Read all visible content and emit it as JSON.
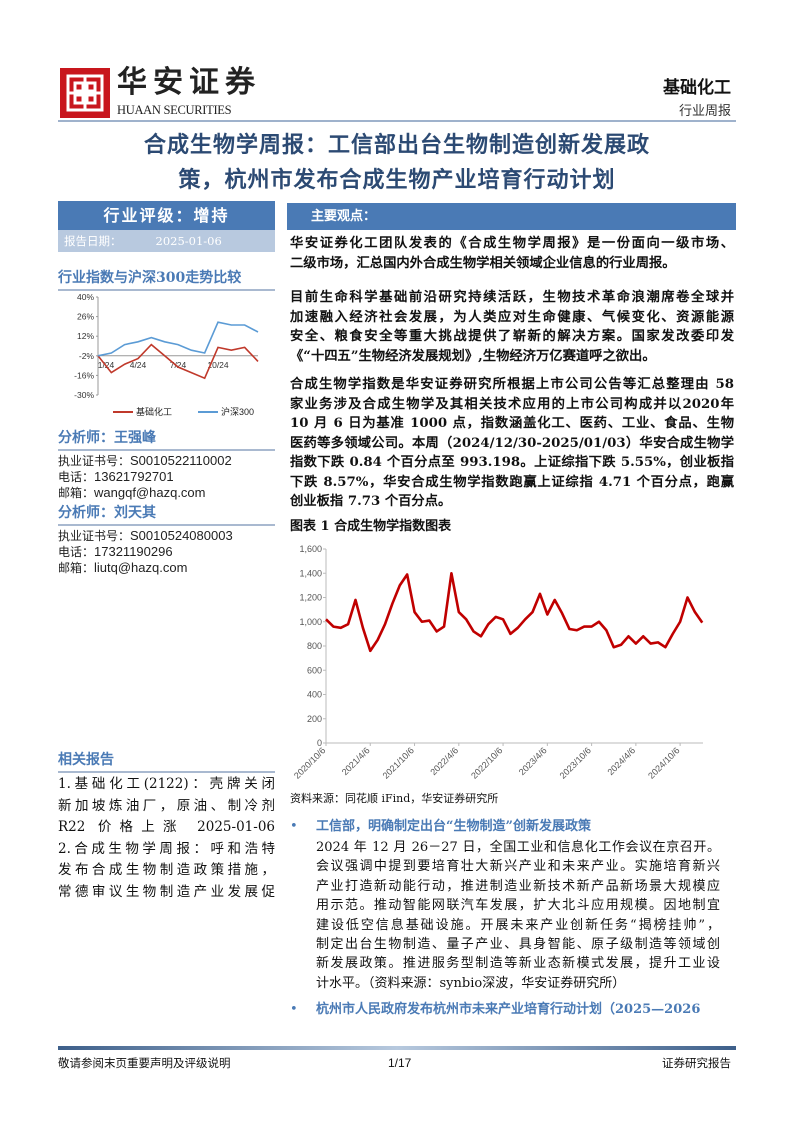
{
  "header": {
    "logo_cn": "华安证券",
    "logo_en": "HUAAN SECURITIES",
    "sector": "基础化工",
    "report_type": "行业周报"
  },
  "title": {
    "line1": "合成生物学周报：工信部出台生物制造创新发展政",
    "line2": "策，杭州市发布合成生物产业培育行动计划"
  },
  "rating": {
    "label": "行业评级：增持",
    "date_label": "报告日期：",
    "date": "2025-01-06"
  },
  "main_points_label": "主要观点：",
  "comparison": {
    "title": "行业指数与沪深300走势比较",
    "chart_data": {
      "type": "line",
      "x": [
        "1/24",
        "2/24",
        "3/24",
        "4/24",
        "5/24",
        "6/24",
        "7/24",
        "8/24",
        "9/24",
        "10/24",
        "11/24",
        "12/24",
        "1/25"
      ],
      "xticks": [
        "1/24",
        "4/24",
        "7/24",
        "10/24"
      ],
      "yticks": [
        "40%",
        "26%",
        "12%",
        "-2%",
        "-16%",
        "-30%"
      ],
      "ylim": [
        -30,
        40
      ],
      "series": [
        {
          "name": "基础化工",
          "color": "#c0392b",
          "values": [
            -2,
            -14,
            -8,
            -4,
            6,
            -2,
            -10,
            -14,
            -18,
            4,
            2,
            4,
            -6
          ]
        },
        {
          "name": "沪深300",
          "color": "#5b9bd5",
          "values": [
            -2,
            0,
            6,
            8,
            11,
            8,
            6,
            2,
            0,
            22,
            20,
            20,
            15
          ]
        }
      ]
    }
  },
  "analysts": [
    {
      "heading": "分析师：王强峰",
      "cert_label": "执业证书号：",
      "cert": "S0010522110002",
      "phone_label": "电话：",
      "phone": "13621792701",
      "email_label": "邮箱：",
      "email": "wangqf@hazq.com"
    },
    {
      "heading": "分析师：刘天其",
      "cert_label": "执业证书号：",
      "cert": "S0010524080003",
      "phone_label": "电话：",
      "phone": "17321190296",
      "email_label": "邮箱：",
      "email": "liutq@hazq.com"
    }
  ],
  "related": {
    "heading": "相关报告",
    "lines": [
      "1.基础化工(2122)：壳牌关闭",
      "新加坡炼油厂，原油、制冷剂",
      "R22 价格上涨 2025-01-06",
      "2.合成生物学周报：呼和浩特",
      "发布合成生物制造政策措施，",
      "常德审议生物制造产业发展促"
    ]
  },
  "paragraphs": [
    [
      "华安证券化工团队发表的《合成生物学周报》是一份面向一级市场、",
      "二级市场，汇总国内外合成生物学相关领域企业信息的行业周报。"
    ],
    [
      "目前生命科学基础前沿研究持续活跃，生物技术革命浪潮席卷全球并",
      "加速融入经济社会发展，为人类应对生命健康、气候变化、资源能源",
      "安全、粮食安全等重大挑战提供了崭新的解决方案。国家发改委印发",
      "《“十四五”生物经济发展规划》,生物经济万亿赛道呼之欲出。"
    ],
    [
      "合成生物学指数是华安证券研究所根据上市公司公告等汇总整理由 58",
      "家业务涉及合成生物学及其相关技术应用的上市公司构成并以2020年",
      "10 月 6 日为基准 1000 点，指数涵盖化工、医药、工业、食品、生物",
      "医药等多领域公司。本周（2024/12/30-2025/01/03）华安合成生物学",
      "指数下跌 0.84 个百分点至 993.198。上证综指下跌 5.55%，创业板指",
      "下跌 8.57%，华安合成生物学指数跑赢上证综指 4.71 个百分点，跑赢",
      "创业板指 7.73 个百分点。"
    ]
  ],
  "figure1": {
    "title": "图表 1 合成生物学指数图表",
    "source": "资料来源：同花顺 iFind，华安证券研究所",
    "chart_data": {
      "type": "line",
      "color": "#c00000",
      "ylim": [
        0,
        1600
      ],
      "yticks": [
        "0",
        "200",
        "400",
        "600",
        "800",
        "1,000",
        "1,200",
        "1,400",
        "1,600"
      ],
      "xticks": [
        "2020/10/6",
        "2021/4/6",
        "2021/10/6",
        "2022/4/6",
        "2022/10/6",
        "2023/4/6",
        "2023/10/6",
        "2024/4/6",
        "2024/10/6"
      ],
      "x": [
        "2020-10",
        "2020-11",
        "2020-12",
        "2021-01",
        "2021-02",
        "2021-03",
        "2021-04",
        "2021-05",
        "2021-06",
        "2021-07",
        "2021-08",
        "2021-09",
        "2021-10",
        "2021-11",
        "2021-12",
        "2022-01",
        "2022-02",
        "2022-03",
        "2022-04",
        "2022-05",
        "2022-06",
        "2022-07",
        "2022-08",
        "2022-09",
        "2022-10",
        "2022-11",
        "2022-12",
        "2023-01",
        "2023-02",
        "2023-03",
        "2023-04",
        "2023-05",
        "2023-06",
        "2023-07",
        "2023-08",
        "2023-09",
        "2023-10",
        "2023-11",
        "2023-12",
        "2024-01",
        "2024-02",
        "2024-03",
        "2024-04",
        "2024-05",
        "2024-06",
        "2024-07",
        "2024-08",
        "2024-09",
        "2024-10",
        "2024-11",
        "2024-12",
        "2025-01"
      ],
      "values": [
        1020,
        960,
        950,
        980,
        1180,
        950,
        760,
        850,
        980,
        1150,
        1300,
        1390,
        1080,
        1000,
        1010,
        920,
        960,
        1400,
        1080,
        1020,
        920,
        880,
        980,
        1040,
        1020,
        900,
        950,
        1020,
        1080,
        1230,
        1060,
        1180,
        1070,
        940,
        930,
        960,
        960,
        1000,
        930,
        790,
        810,
        880,
        820,
        880,
        820,
        830,
        790,
        900,
        1000,
        1200,
        1080,
        993
      ]
    }
  },
  "news": [
    {
      "heading": "工信部，明确制定出台“生物制造”创新发展政策",
      "lines": [
        "2024 年 12 月 26－27 日，全国工业和信息化工作会议在京召开。",
        "会议强调中提到要培育壮大新兴产业和未来产业。实施培育新兴",
        "产业打造新动能行动，推进制造业新技术新产品新场景大规模应",
        "用示范。推动智能网联汽车发展，扩大北斗应用规模。因地制宜",
        "建设低空信息基础设施。开展未来产业创新任务“揭榜挂帅”，",
        "制定出台生物制造、量子产业、具身智能、原子级制造等领域创",
        "新发展政策。推进服务型制造等新业态新模式发展，提升工业设",
        "计水平。（资料来源：synbio深波，华安证券研究所）"
      ]
    },
    {
      "heading": "杭州市人民政府发布杭州市未来产业培育行动计划（2025—2026",
      "lines": []
    }
  ],
  "footer": {
    "left": "敬请参阅末页重要声明及评级说明",
    "page": "1/17",
    "right": "证券研究报告"
  }
}
